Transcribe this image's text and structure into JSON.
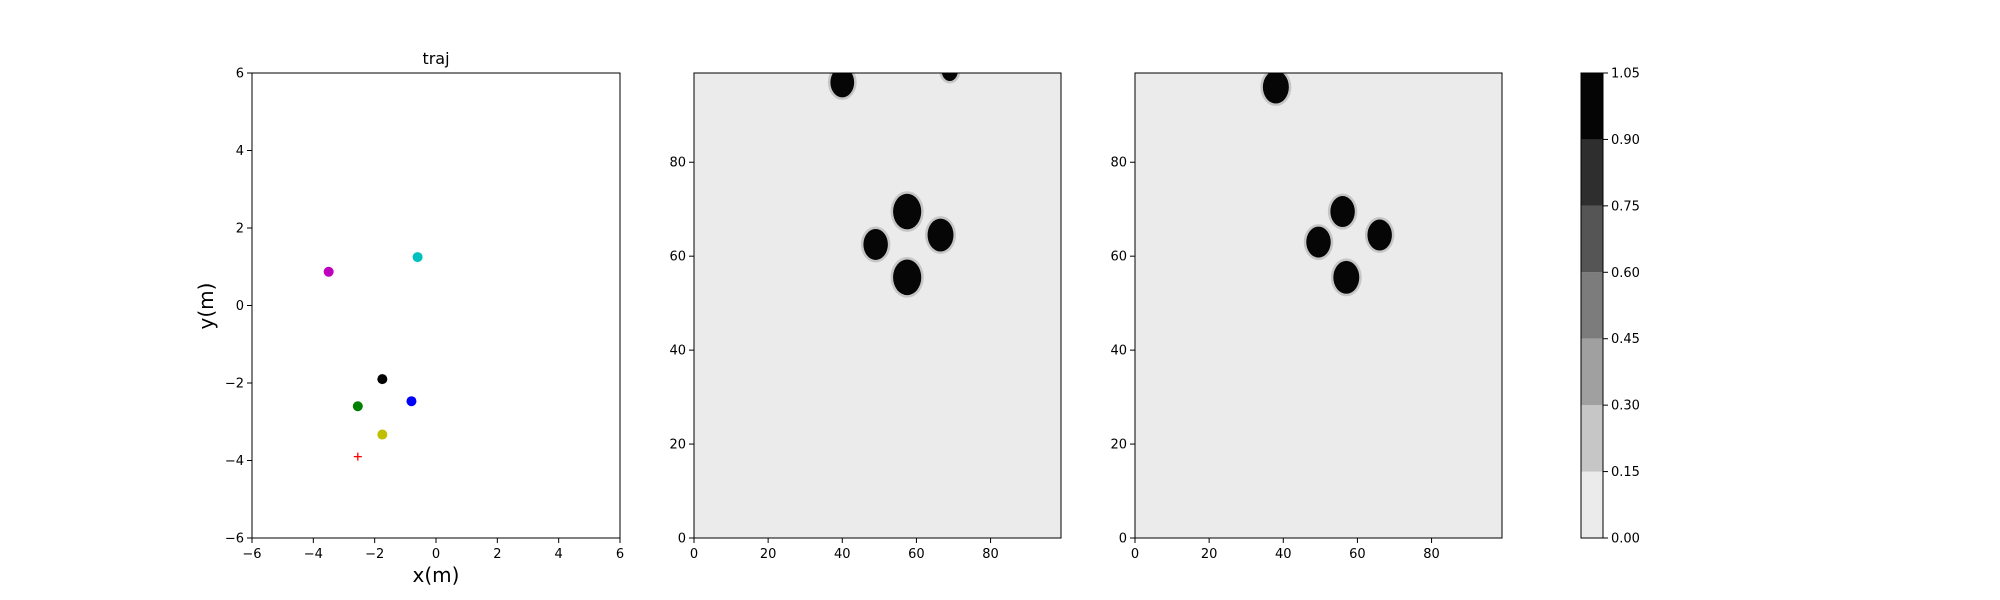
{
  "chart_data": [
    {
      "type": "scatter",
      "title": "traj",
      "xlabel": "x(m)",
      "ylabel": "y(m)",
      "xlim": [
        -6,
        6
      ],
      "ylim": [
        -6,
        6
      ],
      "xticks": [
        "−6",
        "−4",
        "−2",
        "0",
        "2",
        "4",
        "6"
      ],
      "yticks": [
        "−6",
        "−4",
        "−2",
        "0",
        "2",
        "4",
        "6"
      ],
      "grid": false,
      "points": [
        {
          "x": -3.5,
          "y": 0.87,
          "color": "#bf00bf",
          "marker": "circle"
        },
        {
          "x": -0.6,
          "y": 1.25,
          "color": "#00bfbf",
          "marker": "circle"
        },
        {
          "x": -1.75,
          "y": -1.9,
          "color": "#000000",
          "marker": "circle"
        },
        {
          "x": -2.55,
          "y": -2.6,
          "color": "#008000",
          "marker": "circle"
        },
        {
          "x": -0.8,
          "y": -2.47,
          "color": "#0000ff",
          "marker": "circle"
        },
        {
          "x": -1.75,
          "y": -3.33,
          "color": "#bfbf00",
          "marker": "circle"
        },
        {
          "x": -2.55,
          "y": -3.9,
          "color": "#ff0000",
          "marker": "plus"
        }
      ]
    },
    {
      "type": "heatmap",
      "xlim": [
        0,
        99
      ],
      "ylim": [
        0,
        99
      ],
      "xticks": [
        "0",
        "20",
        "40",
        "60",
        "80"
      ],
      "yticks": [
        "0",
        "20",
        "40",
        "60",
        "80"
      ],
      "background_value": 0.05,
      "blobs": [
        {
          "x": 40,
          "y": 97,
          "r": 3.2,
          "value": 1.0
        },
        {
          "x": 69,
          "y": 99.5,
          "r": 2.2,
          "value": 1.0
        },
        {
          "x": 57.5,
          "y": 69.5,
          "r": 3.8,
          "value": 1.0
        },
        {
          "x": 49,
          "y": 62.5,
          "r": 3.3,
          "value": 1.0
        },
        {
          "x": 66.5,
          "y": 64.5,
          "r": 3.5,
          "value": 1.0
        },
        {
          "x": 57.5,
          "y": 55.5,
          "r": 3.8,
          "value": 1.0
        }
      ]
    },
    {
      "type": "heatmap",
      "xlim": [
        0,
        99
      ],
      "ylim": [
        0,
        99
      ],
      "xticks": [
        "0",
        "20",
        "40",
        "60",
        "80"
      ],
      "yticks": [
        "0",
        "20",
        "40",
        "60",
        "80"
      ],
      "background_value": 0.05,
      "blobs": [
        {
          "x": 38,
          "y": 96,
          "r": 3.5,
          "value": 1.0
        },
        {
          "x": 56,
          "y": 69.5,
          "r": 3.3,
          "value": 1.0
        },
        {
          "x": 49.5,
          "y": 63,
          "r": 3.3,
          "value": 1.0
        },
        {
          "x": 66,
          "y": 64.5,
          "r": 3.3,
          "value": 1.0
        },
        {
          "x": 57,
          "y": 55.5,
          "r": 3.5,
          "value": 1.0
        }
      ]
    }
  ],
  "colorbar": {
    "levels": [
      0.0,
      0.15,
      0.3,
      0.45,
      0.6,
      0.75,
      0.9,
      1.05
    ],
    "labels": [
      "0.00",
      "0.15",
      "0.30",
      "0.45",
      "0.60",
      "0.75",
      "0.90",
      "1.05"
    ],
    "colors": [
      "#ebebeb",
      "#c6c6c6",
      "#a0a0a0",
      "#7c7c7c",
      "#555555",
      "#2e2e2e",
      "#050505"
    ]
  }
}
